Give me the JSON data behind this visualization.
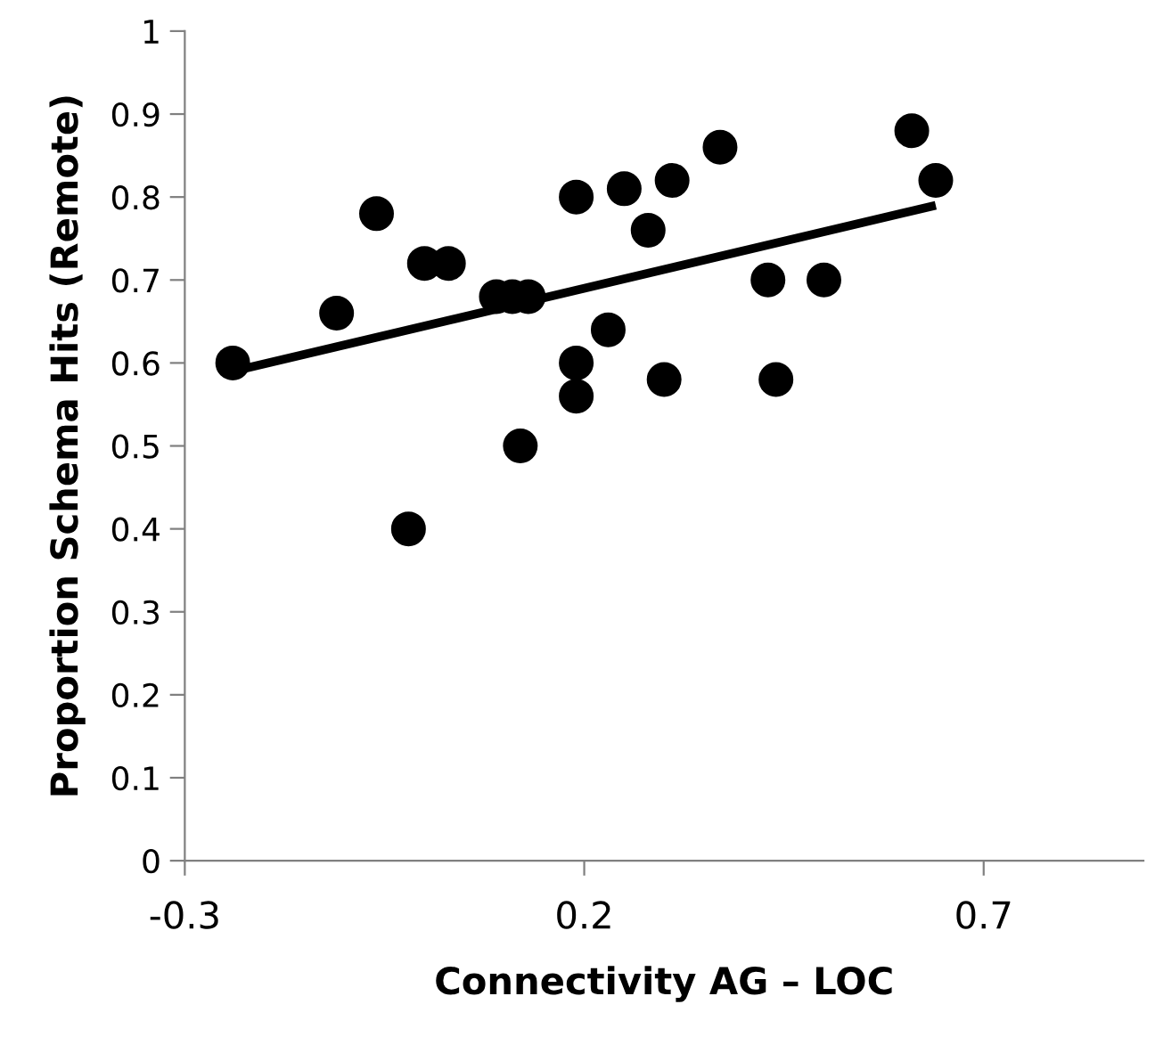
{
  "chart_data": {
    "type": "scatter",
    "xlabel": "Connectivity AG – LOC",
    "ylabel": "Proportion Schema Hits (Remote)",
    "xlim": [
      -0.3,
      0.9
    ],
    "ylim": [
      0,
      1
    ],
    "xticks": [
      -0.3,
      0.2,
      0.7
    ],
    "yticks": [
      0,
      0.1,
      0.2,
      0.3,
      0.4,
      0.5,
      0.6,
      0.7,
      0.8,
      0.9,
      1
    ],
    "grid": false,
    "series": [
      {
        "marker": "circle",
        "color": "#000000",
        "x": [
          -0.24,
          -0.11,
          -0.06,
          0.0,
          0.03,
          -0.02,
          0.09,
          0.11,
          0.13,
          0.12,
          0.19,
          0.19,
          0.19,
          0.23,
          0.25,
          0.28,
          0.3,
          0.31,
          0.37,
          0.43,
          0.44,
          0.5,
          0.61,
          0.64
        ],
        "values": [
          0.6,
          0.66,
          0.78,
          0.72,
          0.72,
          0.4,
          0.68,
          0.68,
          0.68,
          0.5,
          0.6,
          0.56,
          0.8,
          0.64,
          0.81,
          0.76,
          0.58,
          0.82,
          0.86,
          0.7,
          0.58,
          0.7,
          0.88,
          0.82
        ]
      },
      {
        "type": "line",
        "marker": "none",
        "color": "#000000",
        "x": [
          -0.24,
          0.64
        ],
        "values": [
          0.59,
          0.79
        ]
      }
    ]
  }
}
